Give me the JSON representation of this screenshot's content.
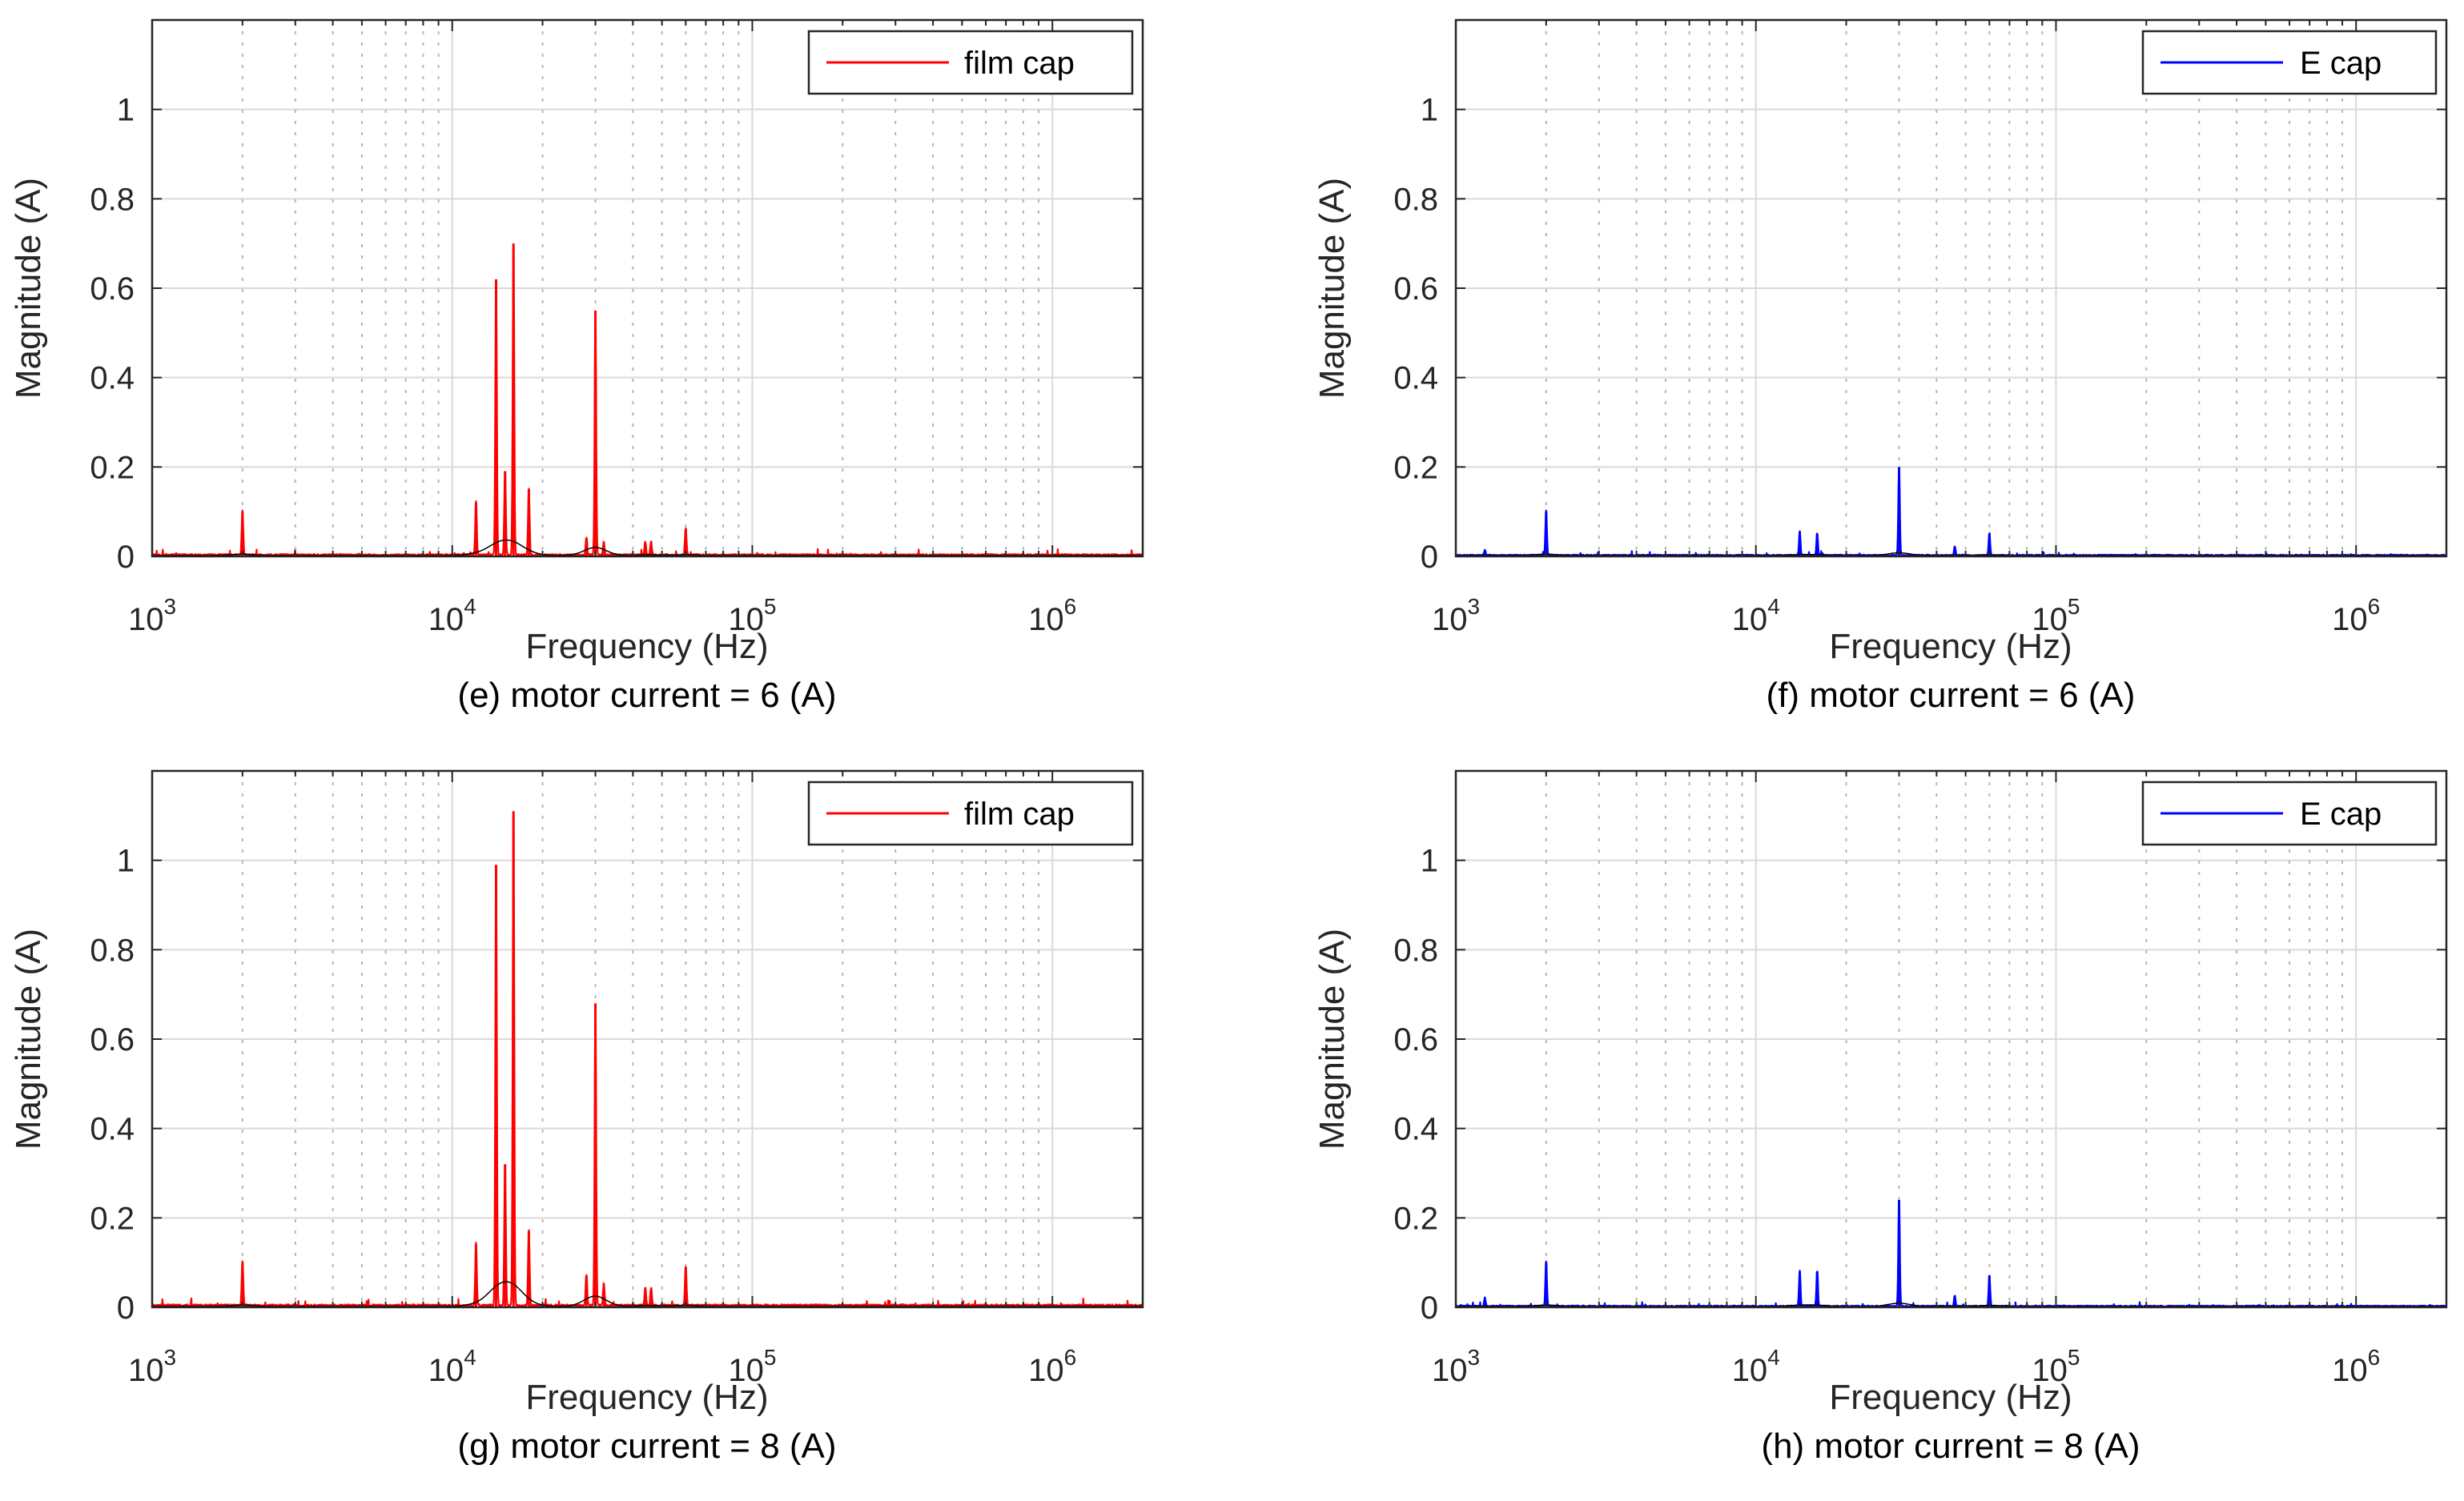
{
  "colors": {
    "film_cap": "#ff0000",
    "e_cap": "#0000ff",
    "baseline": "#000000",
    "grid": "#d9d9d9"
  },
  "chart_data": [
    {
      "type": "line",
      "caption": "(e) motor current = 6 (A)",
      "xlabel": "Frequency (Hz)",
      "ylabel": "Magnitude (A)",
      "xscale": "log",
      "xlim": [
        1000,
        2000000
      ],
      "ylim": [
        0,
        1.2
      ],
      "yticks": [
        0,
        0.2,
        0.4,
        0.6,
        0.8,
        1
      ],
      "ytick_labels": [
        "0",
        "0.2",
        "0.4",
        "0.6",
        "0.8",
        "1"
      ],
      "xticks": [
        1000,
        10000,
        100000,
        1000000
      ],
      "xtick_base": "10",
      "xtick_exponents": [
        "3",
        "4",
        "5",
        "6"
      ],
      "grid": true,
      "legend": {
        "label": "film cap",
        "position": "top-right"
      },
      "series": [
        {
          "name": "film cap",
          "color": "#ff0000",
          "noise": 0.004,
          "peaks": [
            {
              "x": 2000,
              "y": 0.1
            },
            {
              "x": 12000,
              "y": 0.12
            },
            {
              "x": 14000,
              "y": 0.62
            },
            {
              "x": 15000,
              "y": 0.19
            },
            {
              "x": 16000,
              "y": 0.7
            },
            {
              "x": 18000,
              "y": 0.15
            },
            {
              "x": 28000,
              "y": 0.04
            },
            {
              "x": 30000,
              "y": 0.55
            },
            {
              "x": 32000,
              "y": 0.03
            },
            {
              "x": 44000,
              "y": 0.03
            },
            {
              "x": 46000,
              "y": 0.03
            },
            {
              "x": 60000,
              "y": 0.06
            }
          ]
        }
      ]
    },
    {
      "type": "line",
      "caption": "(f) motor current = 6 (A)",
      "xlabel": "Frequency (Hz)",
      "ylabel": "Magnitude (A)",
      "xscale": "log",
      "xlim": [
        1000,
        2000000
      ],
      "ylim": [
        0,
        1.2
      ],
      "yticks": [
        0,
        0.2,
        0.4,
        0.6,
        0.8,
        1
      ],
      "ytick_labels": [
        "0",
        "0.2",
        "0.4",
        "0.6",
        "0.8",
        "1"
      ],
      "xticks": [
        1000,
        10000,
        100000,
        1000000
      ],
      "xtick_base": "10",
      "xtick_exponents": [
        "3",
        "4",
        "5",
        "6"
      ],
      "grid": true,
      "legend": {
        "label": "E cap",
        "position": "top-right"
      },
      "series": [
        {
          "name": "E cap",
          "color": "#0000ff",
          "noise": 0.003,
          "peaks": [
            {
              "x": 1250,
              "y": 0.012
            },
            {
              "x": 2000,
              "y": 0.1
            },
            {
              "x": 14000,
              "y": 0.055
            },
            {
              "x": 16000,
              "y": 0.05
            },
            {
              "x": 30000,
              "y": 0.2
            },
            {
              "x": 46000,
              "y": 0.02
            },
            {
              "x": 60000,
              "y": 0.05
            }
          ]
        }
      ]
    },
    {
      "type": "line",
      "caption": "(g) motor current = 8 (A)",
      "xlabel": "Frequency (Hz)",
      "ylabel": "Magnitude (A)",
      "xscale": "log",
      "xlim": [
        1000,
        2000000
      ],
      "ylim": [
        0,
        1.2
      ],
      "yticks": [
        0,
        0.2,
        0.4,
        0.6,
        0.8,
        1
      ],
      "ytick_labels": [
        "0",
        "0.2",
        "0.4",
        "0.6",
        "0.8",
        "1"
      ],
      "xticks": [
        1000,
        10000,
        100000,
        1000000
      ],
      "xtick_base": "10",
      "xtick_exponents": [
        "3",
        "4",
        "5",
        "6"
      ],
      "grid": true,
      "legend": {
        "label": "film cap",
        "position": "top-right"
      },
      "series": [
        {
          "name": "film cap",
          "color": "#ff0000",
          "noise": 0.005,
          "peaks": [
            {
              "x": 2000,
              "y": 0.1
            },
            {
              "x": 12000,
              "y": 0.14
            },
            {
              "x": 14000,
              "y": 0.99
            },
            {
              "x": 15000,
              "y": 0.32
            },
            {
              "x": 16000,
              "y": 1.11
            },
            {
              "x": 18000,
              "y": 0.17
            },
            {
              "x": 28000,
              "y": 0.07
            },
            {
              "x": 30000,
              "y": 0.68
            },
            {
              "x": 32000,
              "y": 0.05
            },
            {
              "x": 44000,
              "y": 0.04
            },
            {
              "x": 46000,
              "y": 0.04
            },
            {
              "x": 60000,
              "y": 0.09
            }
          ]
        }
      ]
    },
    {
      "type": "line",
      "caption": "(h) motor current = 8 (A)",
      "xlabel": "Frequency (Hz)",
      "ylabel": "Magnitude (A)",
      "xscale": "log",
      "xlim": [
        1000,
        2000000
      ],
      "ylim": [
        0,
        1.2
      ],
      "yticks": [
        0,
        0.2,
        0.4,
        0.6,
        0.8,
        1
      ],
      "ytick_labels": [
        "0",
        "0.2",
        "0.4",
        "0.6",
        "0.8",
        "1"
      ],
      "xticks": [
        1000,
        10000,
        100000,
        1000000
      ],
      "xtick_base": "10",
      "xtick_exponents": [
        "3",
        "4",
        "5",
        "6"
      ],
      "grid": true,
      "legend": {
        "label": "E cap",
        "position": "top-right"
      },
      "series": [
        {
          "name": "E cap",
          "color": "#0000ff",
          "noise": 0.003,
          "peaks": [
            {
              "x": 1250,
              "y": 0.02
            },
            {
              "x": 2000,
              "y": 0.1
            },
            {
              "x": 14000,
              "y": 0.08
            },
            {
              "x": 16000,
              "y": 0.08
            },
            {
              "x": 30000,
              "y": 0.24
            },
            {
              "x": 46000,
              "y": 0.025
            },
            {
              "x": 60000,
              "y": 0.07
            }
          ]
        }
      ]
    }
  ]
}
